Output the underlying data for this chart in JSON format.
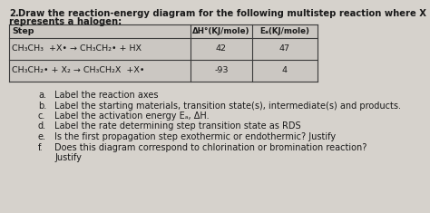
{
  "title_num": "2.",
  "title_text": "  Draw the reaction-energy diagram for the following multistep reaction where X",
  "title_line2": "    represents a halogen:",
  "col0_header": "Step",
  "col1_header": "ΔH°(KJ/mole)",
  "col2_header": "Eₐ(KJ/mole)",
  "row1_step": "CH₃CH₃  +X• → CH₃CH₂• + HX",
  "row1_dh": "42",
  "row1_ea": "47",
  "row2_step": "CH₃CH₂• + X₂ → CH₃CH₂X  +X•",
  "row2_dh": "-93",
  "row2_ea": "4",
  "bullets": [
    [
      "a.",
      "Label the reaction axes"
    ],
    [
      "b.",
      "Label the starting materials, transition state(s), intermediate(s) and products."
    ],
    [
      "c.",
      "Label the activation energy Eₐ, ΔH."
    ],
    [
      "d.",
      "Label the rate determining step transition state as RDS"
    ],
    [
      "e.",
      "Is the first propagation step exothermic or endothermic? Justify"
    ],
    [
      "f.",
      "Does this diagram correspond to chlorination or bromination reaction?"
    ],
    [
      "",
      "Justify"
    ]
  ],
  "bg_color": "#d6d2cc",
  "table_bg": "#cbc7c2",
  "border_color": "#3a3a3a",
  "text_color": "#1a1a1a",
  "title_fontsize": 7.2,
  "table_fontsize": 6.8,
  "bullet_fontsize": 7.0,
  "fig_width": 4.74,
  "fig_height": 2.35,
  "dpi": 100
}
